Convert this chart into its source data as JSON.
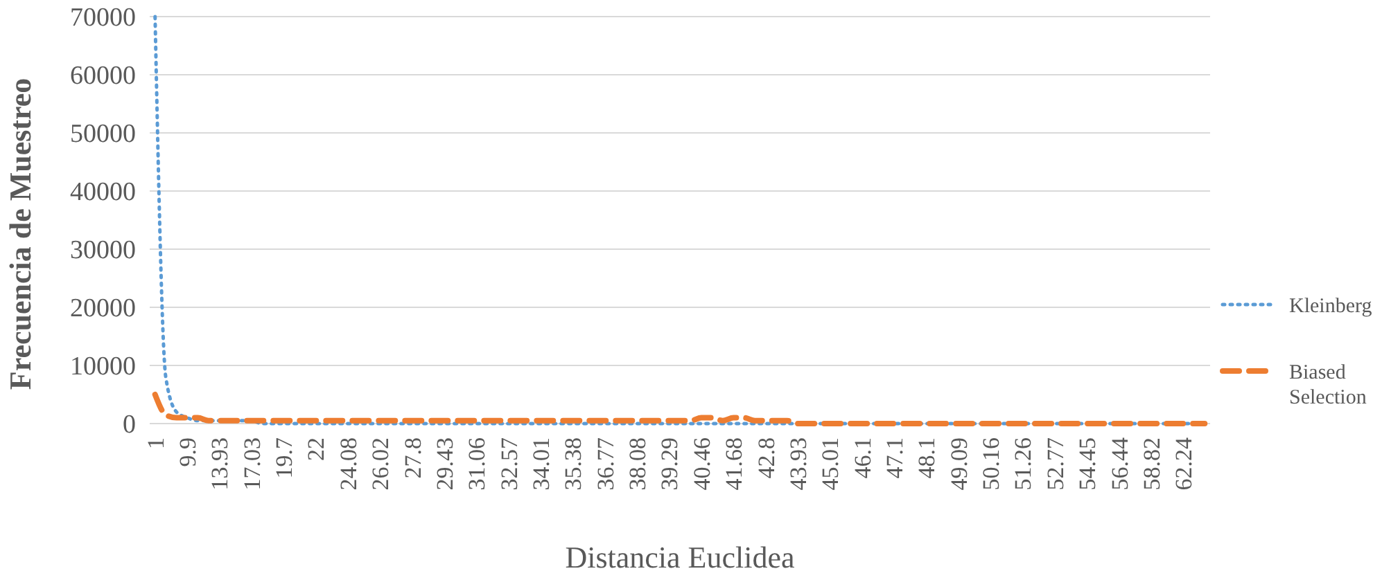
{
  "chart_data": {
    "type": "line",
    "xlabel": "Distancia Euclidea",
    "ylabel": "Frecuencia de Muestreo",
    "categories": [
      "1",
      null,
      null,
      "9.9",
      null,
      null,
      "13.93",
      null,
      null,
      "17.03",
      null,
      null,
      "19.7",
      null,
      null,
      "22",
      null,
      null,
      "24.08",
      null,
      null,
      "26.02",
      null,
      null,
      "27.8",
      null,
      null,
      "29.43",
      null,
      null,
      "31.06",
      null,
      null,
      "32.57",
      null,
      null,
      "34.01",
      null,
      null,
      "35.38",
      null,
      null,
      "36.77",
      null,
      null,
      "38.08",
      null,
      null,
      "39.29",
      null,
      null,
      "40.46",
      null,
      null,
      "41.68",
      null,
      null,
      "42.8",
      null,
      null,
      "43.93",
      null,
      null,
      "45.01",
      null,
      null,
      "46.1",
      null,
      null,
      "47.1",
      null,
      null,
      "48.1",
      null,
      null,
      "49.09",
      null,
      null,
      "50.16",
      null,
      null,
      "51.26",
      null,
      null,
      "52.77",
      null,
      null,
      "54.45",
      null,
      null,
      "56.44",
      null,
      null,
      "58.82",
      null,
      null,
      "62.24",
      null,
      null
    ],
    "series": [
      {
        "name": "Kleinberg",
        "color": "#5b9bd5",
        "line_style": "dotted",
        "values": [
          70000,
          8000,
          2000,
          1000,
          500,
          500,
          500,
          500,
          500,
          500,
          0,
          0,
          0,
          0,
          0,
          0,
          0,
          0,
          0,
          0,
          0,
          0,
          0,
          0,
          0,
          0,
          0,
          0,
          0,
          0,
          0,
          0,
          0,
          0,
          0,
          0,
          0,
          0,
          0,
          0,
          0,
          0,
          0,
          0,
          0,
          0,
          0,
          0,
          0,
          0,
          0,
          0,
          0,
          0,
          0,
          0,
          0,
          0,
          0,
          0,
          0,
          0,
          0,
          0,
          0,
          0,
          0,
          0,
          0,
          0,
          0,
          0,
          0,
          0,
          0,
          0,
          0,
          0,
          0,
          0,
          0,
          0,
          0,
          0,
          0,
          0,
          0,
          0,
          0,
          0,
          0,
          0,
          0,
          0,
          0,
          0,
          0,
          0,
          0
        ]
      },
      {
        "name": "Biased Selection",
        "color": "#ed7d31",
        "line_style": "dashed",
        "values": [
          5000,
          1500,
          1000,
          1000,
          1000,
          500,
          500,
          500,
          500,
          500,
          500,
          500,
          500,
          500,
          500,
          500,
          500,
          500,
          500,
          500,
          500,
          500,
          500,
          500,
          500,
          500,
          500,
          500,
          500,
          500,
          500,
          500,
          500,
          500,
          500,
          500,
          500,
          500,
          500,
          500,
          500,
          500,
          500,
          500,
          500,
          500,
          500,
          500,
          500,
          500,
          500,
          1000,
          1000,
          500,
          1000,
          1000,
          500,
          500,
          500,
          500,
          0,
          0,
          0,
          0,
          0,
          0,
          0,
          0,
          0,
          0,
          0,
          0,
          0,
          0,
          0,
          0,
          0,
          0,
          0,
          0,
          0,
          0,
          0,
          0,
          0,
          0,
          0,
          0,
          0,
          0,
          0,
          0,
          0,
          0,
          0,
          0,
          0,
          0,
          0
        ]
      }
    ],
    "ylim": [
      0,
      70000
    ],
    "yticks": [
      0,
      10000,
      20000,
      30000,
      40000,
      50000,
      60000,
      70000
    ],
    "grid": "y",
    "legend": "right",
    "marker": "none"
  }
}
